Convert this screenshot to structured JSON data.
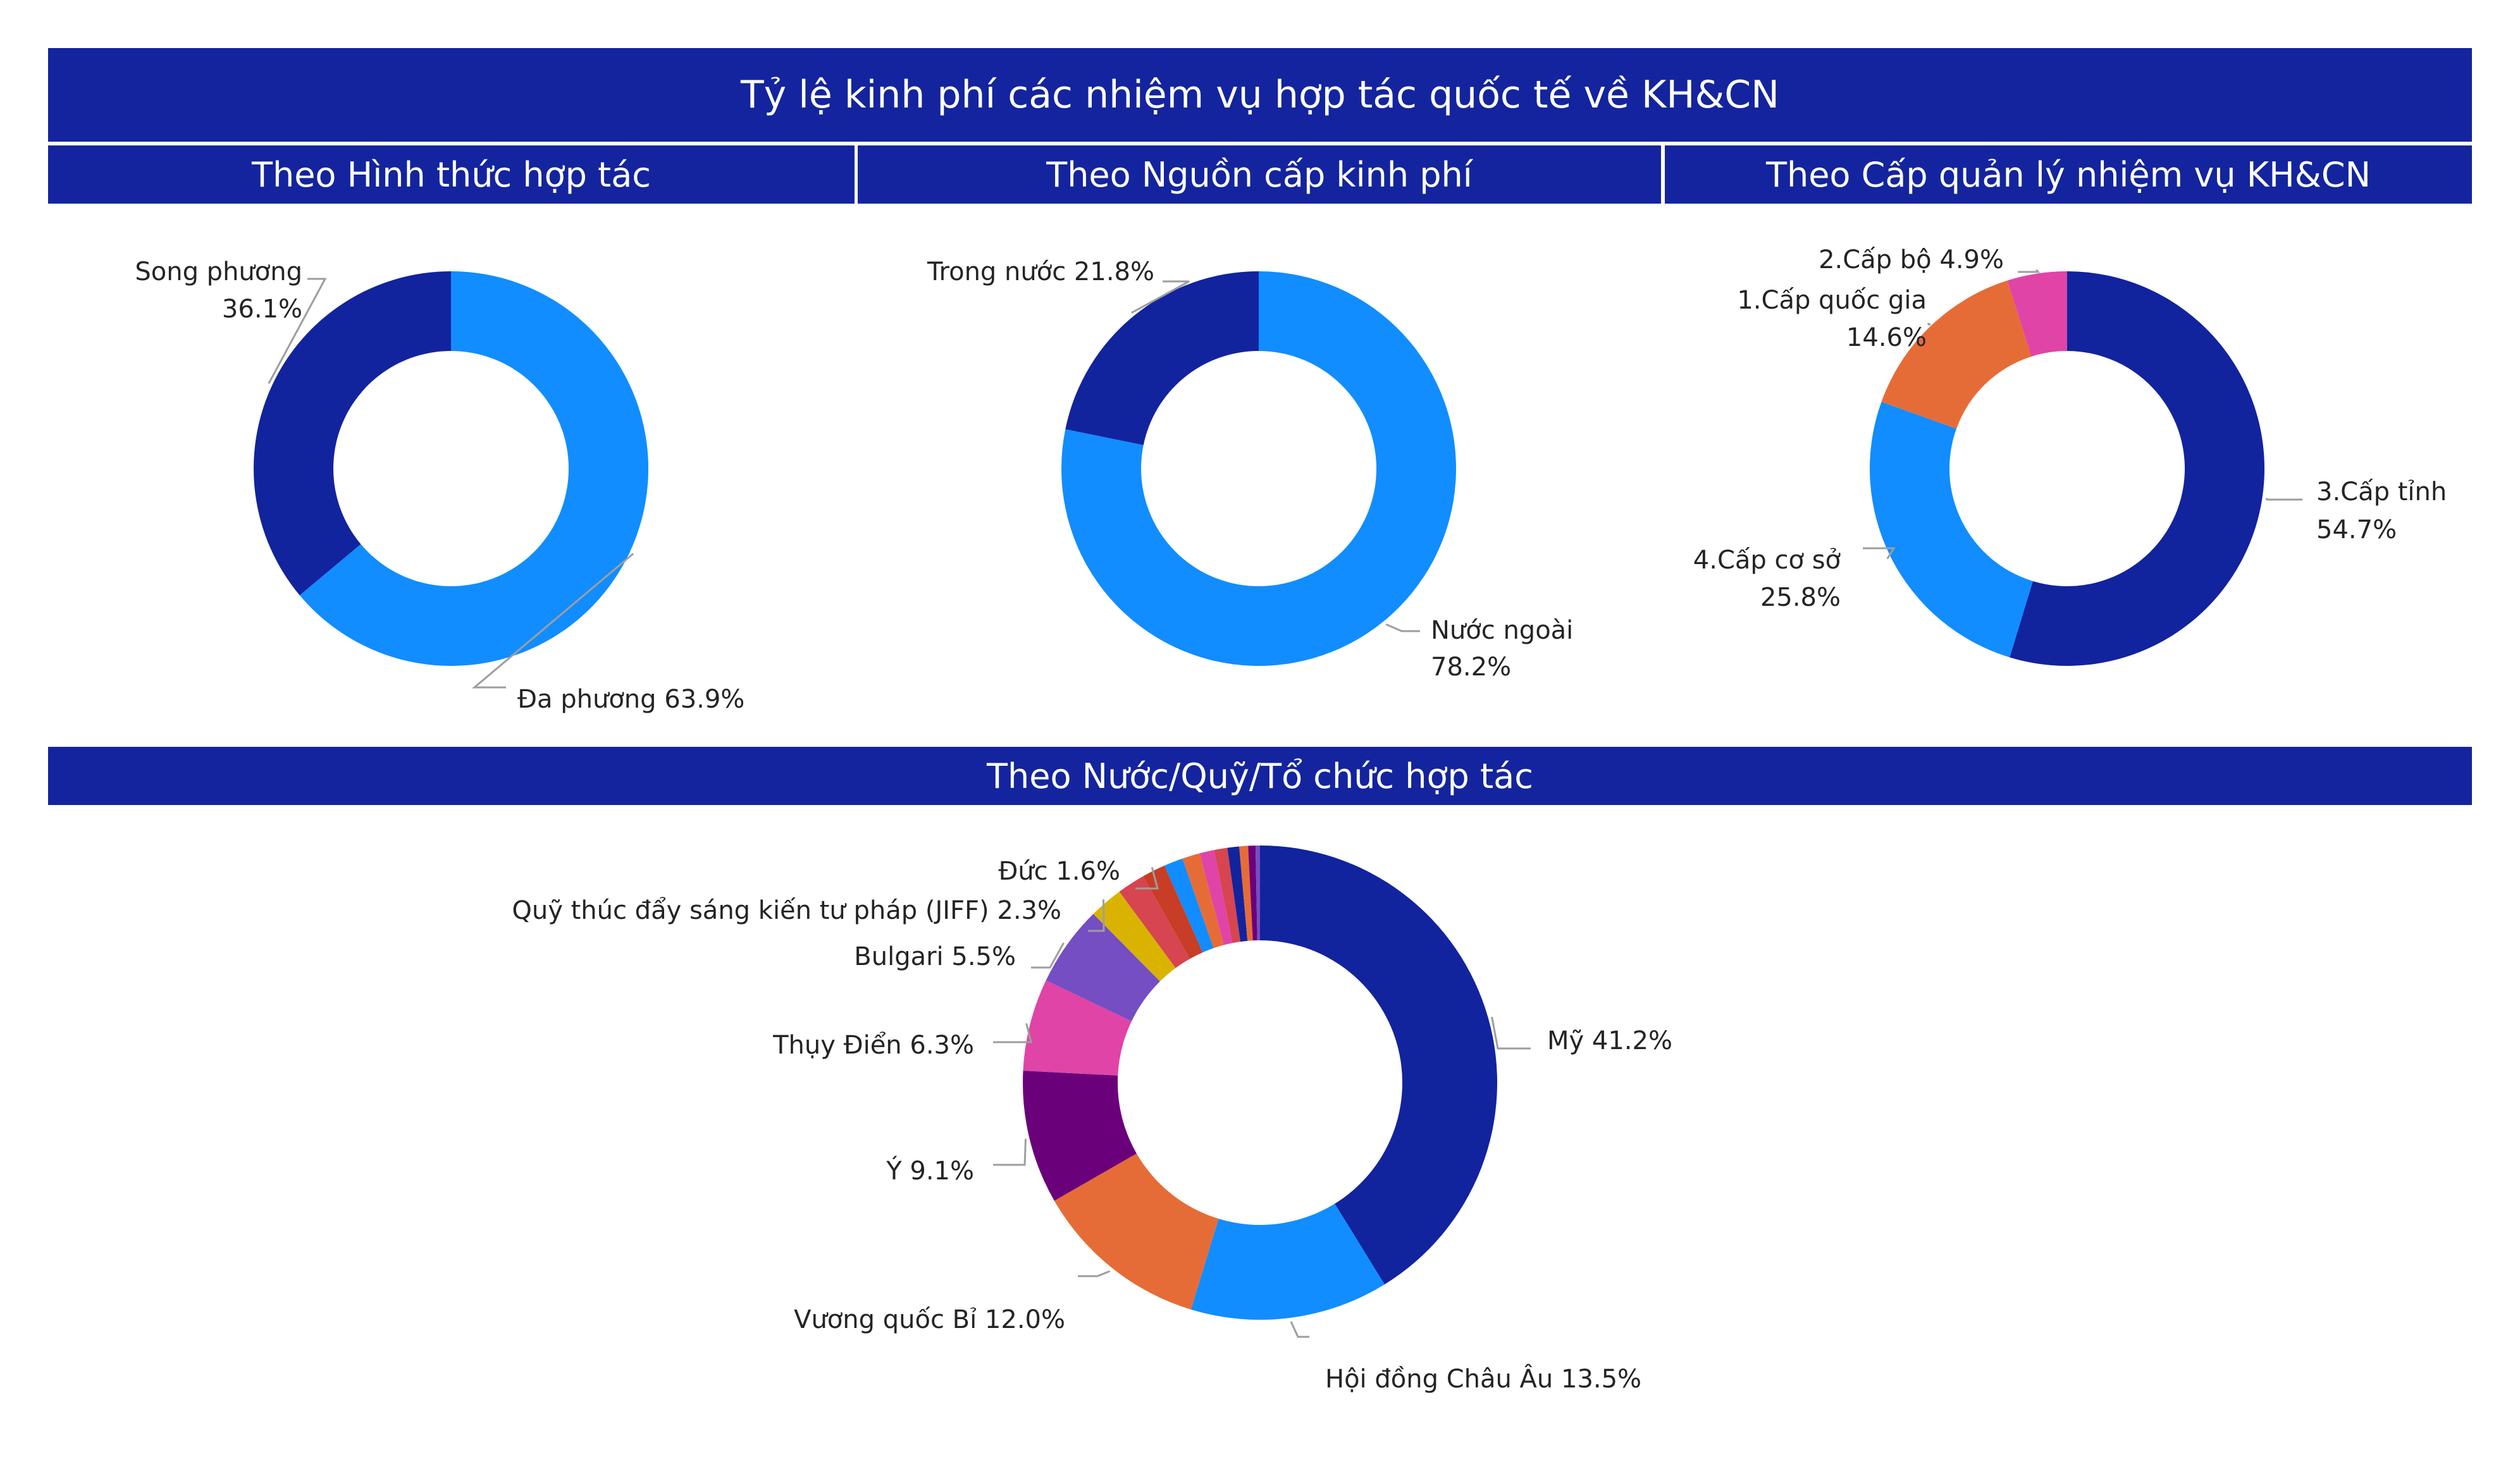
{
  "title": "Tỷ lệ kinh phí các nhiệm vụ hợp tác quốc tế về KH&CN",
  "subtitles": [
    "Theo Hình thức hợp tác",
    "Theo Nguồn cấp kinh phí",
    "Theo Cấp quản lý nhiệm vụ KH&CN"
  ],
  "section_title": "Theo Nước/Quỹ/Tổ chức hợp tác",
  "colors": {
    "header_bg": "#13249e",
    "header_text": "#ffffff",
    "leader_line": "#9e9e9e",
    "label_text": "#252423"
  },
  "chart_data": [
    {
      "type": "pie",
      "donut": true,
      "slices": [
        {
          "label": "Đa phương",
          "value": 63.9,
          "color": "#118dff",
          "label_lines": [
            "Đa phương 63.9%"
          ]
        },
        {
          "label": "Song phương",
          "value": 36.1,
          "color": "#12239e",
          "label_lines": [
            "Song phương",
            "36.1%"
          ]
        }
      ]
    },
    {
      "type": "pie",
      "donut": true,
      "slices": [
        {
          "label": "Nước ngoài",
          "value": 78.2,
          "color": "#118dff",
          "label_lines": [
            "Nước ngoài",
            "78.2%"
          ]
        },
        {
          "label": "Trong nước",
          "value": 21.8,
          "color": "#12239e",
          "label_lines": [
            "Trong nước 21.8%"
          ]
        }
      ]
    },
    {
      "type": "pie",
      "donut": true,
      "slices": [
        {
          "label": "3.Cấp tỉnh",
          "value": 54.7,
          "color": "#12239e",
          "label_lines": [
            "3.Cấp tỉnh",
            "54.7%"
          ]
        },
        {
          "label": "4.Cấp cơ sở",
          "value": 25.8,
          "color": "#118dff",
          "label_lines": [
            "4.Cấp cơ sở",
            "25.8%"
          ]
        },
        {
          "label": "1.Cấp quốc gia",
          "value": 14.6,
          "color": "#e66c37",
          "label_lines": [
            "1.Cấp quốc gia",
            "14.6%"
          ]
        },
        {
          "label": "2.Cấp bộ",
          "value": 4.9,
          "color": "#e044a7",
          "label_lines": [
            "2.Cấp bộ 4.9%"
          ]
        }
      ]
    },
    {
      "type": "pie",
      "donut": true,
      "slices": [
        {
          "label": "Mỹ",
          "value": 41.2,
          "color": "#12239e",
          "label_lines": [
            "Mỹ 41.2%"
          ]
        },
        {
          "label": "Hội đồng Châu Âu",
          "value": 13.5,
          "color": "#118dff",
          "label_lines": [
            "Hội đồng Châu Âu 13.5%"
          ]
        },
        {
          "label": "Vương quốc Bỉ",
          "value": 12.0,
          "color": "#e66c37",
          "label_lines": [
            "Vương quốc Bỉ 12.0%"
          ]
        },
        {
          "label": "Ý",
          "value": 9.1,
          "color": "#6b007b",
          "label_lines": [
            "Ý 9.1%"
          ]
        },
        {
          "label": "Thụy Điển",
          "value": 6.3,
          "color": "#e044a7",
          "label_lines": [
            "Thụy Điển 6.3%"
          ]
        },
        {
          "label": "Bulgari",
          "value": 5.5,
          "color": "#744ec2",
          "label_lines": [
            "Bulgari 5.5%"
          ]
        },
        {
          "label": "Quỹ thúc đẩy sáng kiến tư pháp (JIFF)",
          "value": 2.3,
          "color": "#d9b300",
          "label_lines": [
            "Quỹ thúc đẩy sáng kiến tư pháp (JIFF) 2.3%"
          ]
        },
        {
          "label": "",
          "value": 1.9,
          "color": "#d64550",
          "label_lines": []
        },
        {
          "label": "Đức",
          "value": 1.6,
          "color": "#c83d25",
          "label_lines": [
            "Đức 1.6%"
          ]
        },
        {
          "label": "",
          "value": 1.3,
          "color": "#118dff",
          "label_lines": []
        },
        {
          "label": "",
          "value": 1.2,
          "color": "#e66c37",
          "label_lines": []
        },
        {
          "label": "",
          "value": 1.0,
          "color": "#e044a7",
          "label_lines": []
        },
        {
          "label": "",
          "value": 0.9,
          "color": "#d64550",
          "label_lines": []
        },
        {
          "label": "",
          "value": 0.8,
          "color": "#12239e",
          "label_lines": []
        },
        {
          "label": "",
          "value": 0.6,
          "color": "#e66c37",
          "label_lines": []
        },
        {
          "label": "",
          "value": 0.5,
          "color": "#6b007b",
          "label_lines": []
        },
        {
          "label": "",
          "value": 0.3,
          "color": "#744ec2",
          "label_lines": []
        }
      ]
    }
  ]
}
